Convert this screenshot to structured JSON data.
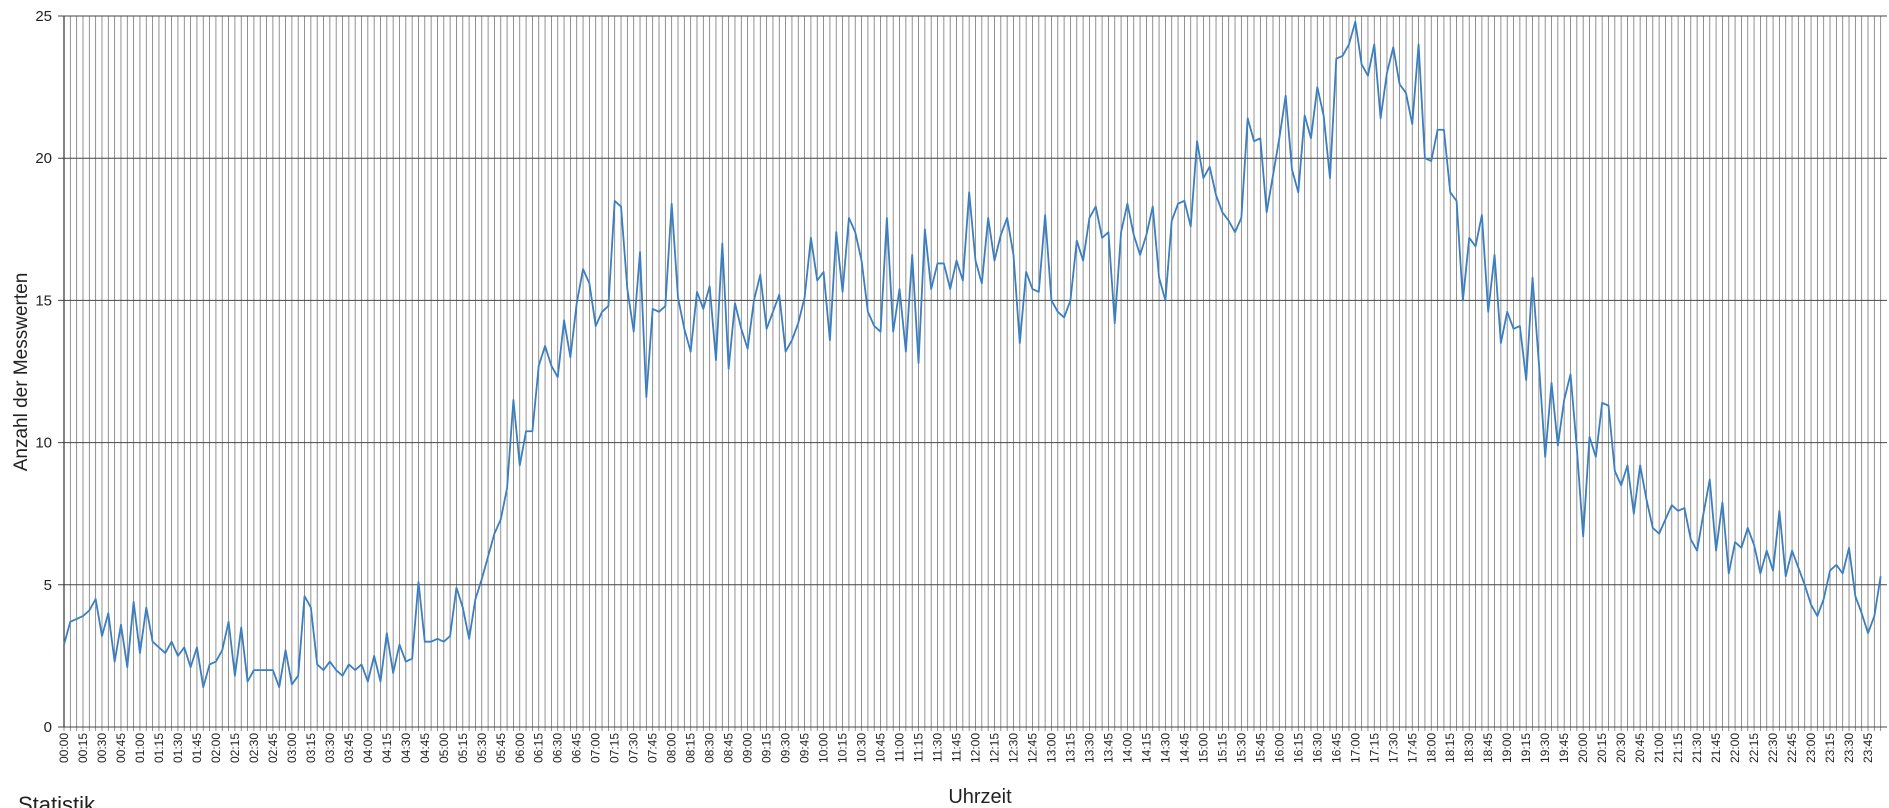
{
  "chart_data": {
    "type": "line",
    "footer": "Statistik",
    "x_label": "Uhrzeit",
    "y_label": "Anzahl der Messwerten",
    "categories": [
      "00:00",
      null,
      null,
      "00:15",
      null,
      null,
      "00:30",
      null,
      null,
      "00:45",
      null,
      null,
      "01:00",
      null,
      null,
      "01:15",
      null,
      null,
      "01:30",
      null,
      null,
      "01:45",
      null,
      null,
      "02:00",
      null,
      null,
      "02:15",
      null,
      null,
      "02:30",
      null,
      null,
      "02:45",
      null,
      null,
      "03:00",
      null,
      null,
      "03:15",
      null,
      null,
      "03:30",
      null,
      null,
      "03:45",
      null,
      null,
      "04:00",
      null,
      null,
      "04:15",
      null,
      null,
      "04:30",
      null,
      null,
      "04:45",
      null,
      null,
      "05:00",
      null,
      null,
      "05:15",
      null,
      null,
      "05:30",
      null,
      null,
      "05:45",
      null,
      null,
      "06:00",
      null,
      null,
      "06:15",
      null,
      null,
      "06:30",
      null,
      null,
      "06:45",
      null,
      null,
      "07:00",
      null,
      null,
      "07:15",
      null,
      null,
      "07:30",
      null,
      null,
      "07:45",
      null,
      null,
      "08:00",
      null,
      null,
      "08:15",
      null,
      null,
      "08:30",
      null,
      null,
      "08:45",
      null,
      null,
      "09:00",
      null,
      null,
      "09:15",
      null,
      null,
      "09:30",
      null,
      null,
      "09:45",
      null,
      null,
      "10:00",
      null,
      null,
      "10:15",
      null,
      null,
      "10:30",
      null,
      null,
      "10:45",
      null,
      null,
      "11:00",
      null,
      null,
      "11:15",
      null,
      null,
      "11:30",
      null,
      null,
      "11:45",
      null,
      null,
      "12:00",
      null,
      null,
      "12:15",
      null,
      null,
      "12:30",
      null,
      null,
      "12:45",
      null,
      null,
      "13:00",
      null,
      null,
      "13:15",
      null,
      null,
      "13:30",
      null,
      null,
      "13:45",
      null,
      null,
      "14:00",
      null,
      null,
      "14:15",
      null,
      null,
      "14:30",
      null,
      null,
      "14:45",
      null,
      null,
      "15:00",
      null,
      null,
      "15:15",
      null,
      null,
      "15:30",
      null,
      null,
      "15:45",
      null,
      null,
      "16:00",
      null,
      null,
      "16:15",
      null,
      null,
      "16:30",
      null,
      null,
      "16:45",
      null,
      null,
      "17:00",
      null,
      null,
      "17:15",
      null,
      null,
      "17:30",
      null,
      null,
      "17:45",
      null,
      null,
      "18:00",
      null,
      null,
      "18:15",
      null,
      null,
      "18:30",
      null,
      null,
      "18:45",
      null,
      null,
      "19:00",
      null,
      null,
      "19:15",
      null,
      null,
      "19:30",
      null,
      null,
      "19:45",
      null,
      null,
      "20:00",
      null,
      null,
      "20:15",
      null,
      null,
      "20:30",
      null,
      null,
      "20:45",
      null,
      null,
      "21:00",
      null,
      null,
      "21:15",
      null,
      null,
      "21:30",
      null,
      null,
      "21:45",
      null,
      null,
      "22:00",
      null,
      null,
      "22:15",
      null,
      null,
      "22:30",
      null,
      null,
      "22:45",
      null,
      null,
      "23:00",
      null,
      null,
      "23:15",
      null,
      null,
      "23:30",
      null,
      null,
      "23:45",
      null,
      null
    ],
    "series": [
      {
        "color": "#3a7fc1",
        "values": [
          2.9,
          3.7,
          3.8,
          3.9,
          4.1,
          4.5,
          3.2,
          4.0,
          2.3,
          3.6,
          2.1,
          4.4,
          2.6,
          4.2,
          3.0,
          2.8,
          2.6,
          3.0,
          2.5,
          2.8,
          2.1,
          2.8,
          1.4,
          2.2,
          2.3,
          2.7,
          3.7,
          1.8,
          3.5,
          1.6,
          2.0,
          2.0,
          2.0,
          2.0,
          1.4,
          2.7,
          1.5,
          1.8,
          4.6,
          4.2,
          2.2,
          2.0,
          2.3,
          2.0,
          1.8,
          2.2,
          2.0,
          2.2,
          1.6,
          2.5,
          1.6,
          3.3,
          1.9,
          2.9,
          2.3,
          2.4,
          5.1,
          3.0,
          3.0,
          3.1,
          3.0,
          3.2,
          4.9,
          4.2,
          3.1,
          4.5,
          5.2,
          6.0,
          6.8,
          7.3,
          8.4,
          11.5,
          9.2,
          10.4,
          10.4,
          12.7,
          13.4,
          12.7,
          12.3,
          14.3,
          13.0,
          14.9,
          16.1,
          15.6,
          14.1,
          14.6,
          14.8,
          18.5,
          18.3,
          15.4,
          13.9,
          16.7,
          11.6,
          14.7,
          14.6,
          14.8,
          18.4,
          15.1,
          14.0,
          13.2,
          15.3,
          14.7,
          15.5,
          12.9,
          17.0,
          12.6,
          14.9,
          14.0,
          13.3,
          15.0,
          15.9,
          14.0,
          14.6,
          15.2,
          13.2,
          13.6,
          14.2,
          15.1,
          17.2,
          15.7,
          16.0,
          13.6,
          17.4,
          15.3,
          17.9,
          17.4,
          16.4,
          14.6,
          14.1,
          13.9,
          17.9,
          13.9,
          15.4,
          13.2,
          16.6,
          12.8,
          17.5,
          15.4,
          16.3,
          16.3,
          15.4,
          16.4,
          15.7,
          18.8,
          16.4,
          15.6,
          17.9,
          16.4,
          17.3,
          17.9,
          16.6,
          13.5,
          16.0,
          15.4,
          15.3,
          18.0,
          15.0,
          14.6,
          14.4,
          15.0,
          17.1,
          16.4,
          17.9,
          18.3,
          17.2,
          17.4,
          14.2,
          17.4,
          18.4,
          17.3,
          16.6,
          17.3,
          18.3,
          15.8,
          15.0,
          17.8,
          18.4,
          18.5,
          17.6,
          20.6,
          19.3,
          19.7,
          18.7,
          18.1,
          17.8,
          17.4,
          17.9,
          21.4,
          20.6,
          20.7,
          18.1,
          19.4,
          20.7,
          22.2,
          19.6,
          18.8,
          21.5,
          20.7,
          22.5,
          21.5,
          19.3,
          23.5,
          23.6,
          24.0,
          24.8,
          23.3,
          22.9,
          24.0,
          21.4,
          23.0,
          23.9,
          22.6,
          22.3,
          21.2,
          24.0,
          20.0,
          19.9,
          21.0,
          21.0,
          18.8,
          18.5,
          15.0,
          17.2,
          16.9,
          18.0,
          14.6,
          16.6,
          13.5,
          14.6,
          14.0,
          14.1,
          12.2,
          15.8,
          12.8,
          9.5,
          12.1,
          9.9,
          11.5,
          12.4,
          9.8,
          6.7,
          10.2,
          9.5,
          11.4,
          11.3,
          9.0,
          8.5,
          9.2,
          7.5,
          9.2,
          8.0,
          7.0,
          6.8,
          7.3,
          7.8,
          7.6,
          7.7,
          6.6,
          6.2,
          7.5,
          8.7,
          6.2,
          7.9,
          5.4,
          6.5,
          6.3,
          7.0,
          6.4,
          5.4,
          6.2,
          5.5,
          7.6,
          5.3,
          6.2,
          5.6,
          5.0,
          4.3,
          3.9,
          4.5,
          5.5,
          5.7,
          5.4,
          6.3,
          4.6,
          4.0,
          3.3,
          3.9,
          5.3
        ]
      }
    ],
    "ylim": [
      0,
      25
    ],
    "yticks": [
      0,
      5,
      10,
      15,
      20,
      25
    ],
    "grid": true
  }
}
